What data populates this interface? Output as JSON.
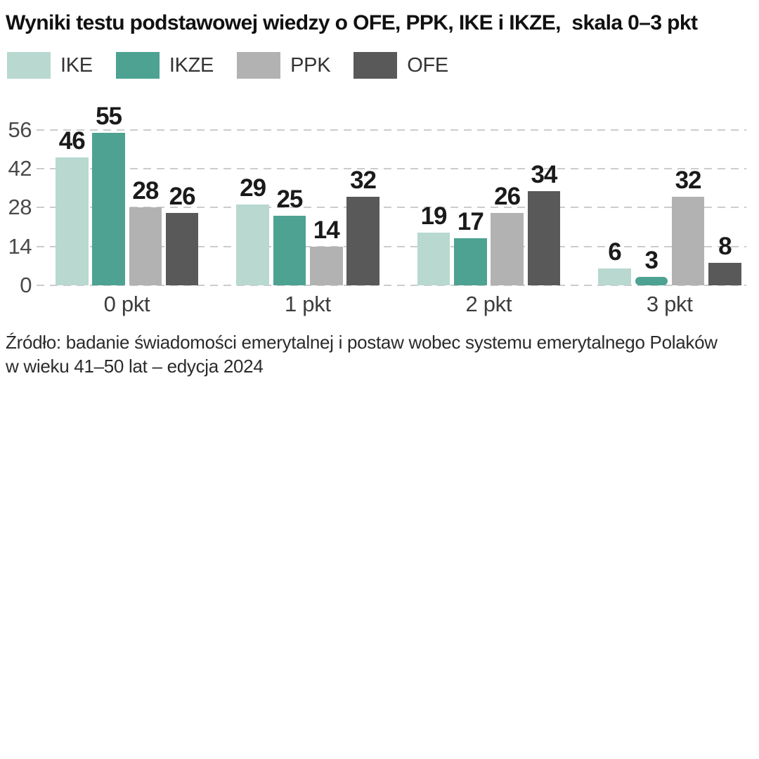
{
  "title": "Wyniki testu podstawowej wiedzy o OFE, PPK, IKE i IKZE,  skala 0–3 pkt",
  "legend": {
    "items": [
      {
        "label": "IKE",
        "color": "#b8d8d0"
      },
      {
        "label": "IKZE",
        "color": "#4da292"
      },
      {
        "label": "PPK",
        "color": "#b2b2b2"
      },
      {
        "label": "OFE",
        "color": "#595959"
      }
    ]
  },
  "chart_data": {
    "type": "bar",
    "title": "Wyniki testu podstawowej wiedzy o OFE, PPK, IKE i IKZE, skala 0–3 pkt",
    "categories": [
      "0 pkt",
      "1 pkt",
      "2 pkt",
      "3 pkt"
    ],
    "series": [
      {
        "name": "IKE",
        "color": "#b8d8d0",
        "values": [
          46,
          29,
          19,
          6
        ]
      },
      {
        "name": "IKZE",
        "color": "#4da292",
        "values": [
          55,
          25,
          17,
          3
        ]
      },
      {
        "name": "PPK",
        "color": "#b2b2b2",
        "values": [
          28,
          14,
          26,
          32
        ]
      },
      {
        "name": "OFE",
        "color": "#595959",
        "values": [
          26,
          32,
          34,
          8
        ]
      }
    ],
    "xlabel": "",
    "ylabel": "",
    "yticks": [
      0,
      14,
      28,
      42,
      56
    ],
    "ylim": [
      0,
      60
    ],
    "grid": "horizontal-dashed",
    "legend_position": "top-left",
    "value_labels": true
  },
  "source": {
    "line1": "Źródło: badanie świadomości emerytalnej i postaw wobec systemu emerytalnego Polaków",
    "line2": "w wieku 41–50 lat – edycja 2024"
  }
}
